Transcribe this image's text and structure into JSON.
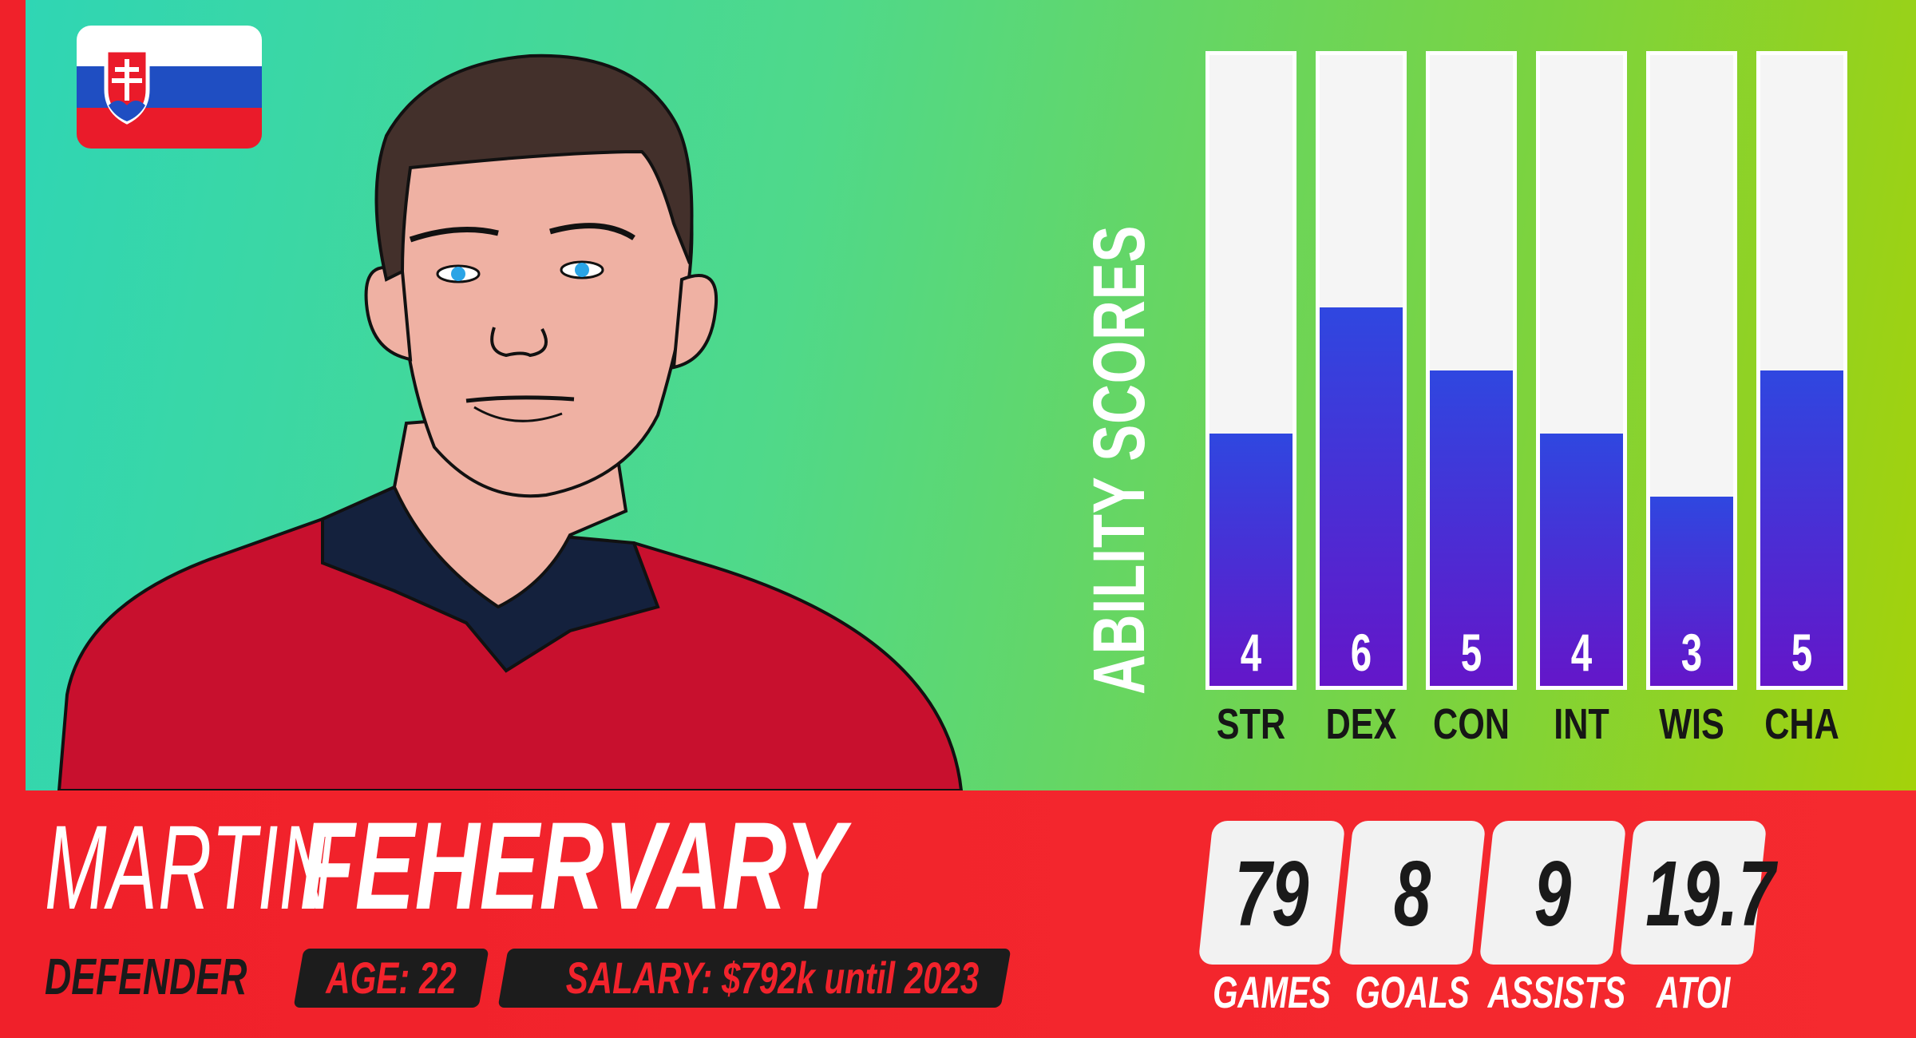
{
  "player": {
    "first_name": "MARTIN",
    "last_name": "FEHERVARY",
    "position": "DEFENDER",
    "age_label": "AGE: 22",
    "salary_label": "SALARY: $792k until 2023"
  },
  "flag": {
    "country_icon": "slovakia-flag-icon"
  },
  "ability": {
    "title": "ABILITY SCORES",
    "max": 10,
    "scores": [
      {
        "label": "STR",
        "value": 4
      },
      {
        "label": "DEX",
        "value": 6
      },
      {
        "label": "CON",
        "value": 5
      },
      {
        "label": "INT",
        "value": 4
      },
      {
        "label": "WIS",
        "value": 3
      },
      {
        "label": "CHA",
        "value": 5
      }
    ]
  },
  "stats": [
    {
      "value": "79",
      "label": "GAMES"
    },
    {
      "value": "8",
      "label": "GOALS"
    },
    {
      "value": "9",
      "label": "ASSISTS"
    },
    {
      "value": "19.7",
      "label": "ATOI"
    }
  ],
  "colors": {
    "accent_red": "#f0212a",
    "bar_blue": "#2f47e0",
    "bar_purple": "#6416c9",
    "jersey_red": "#c8102e"
  }
}
